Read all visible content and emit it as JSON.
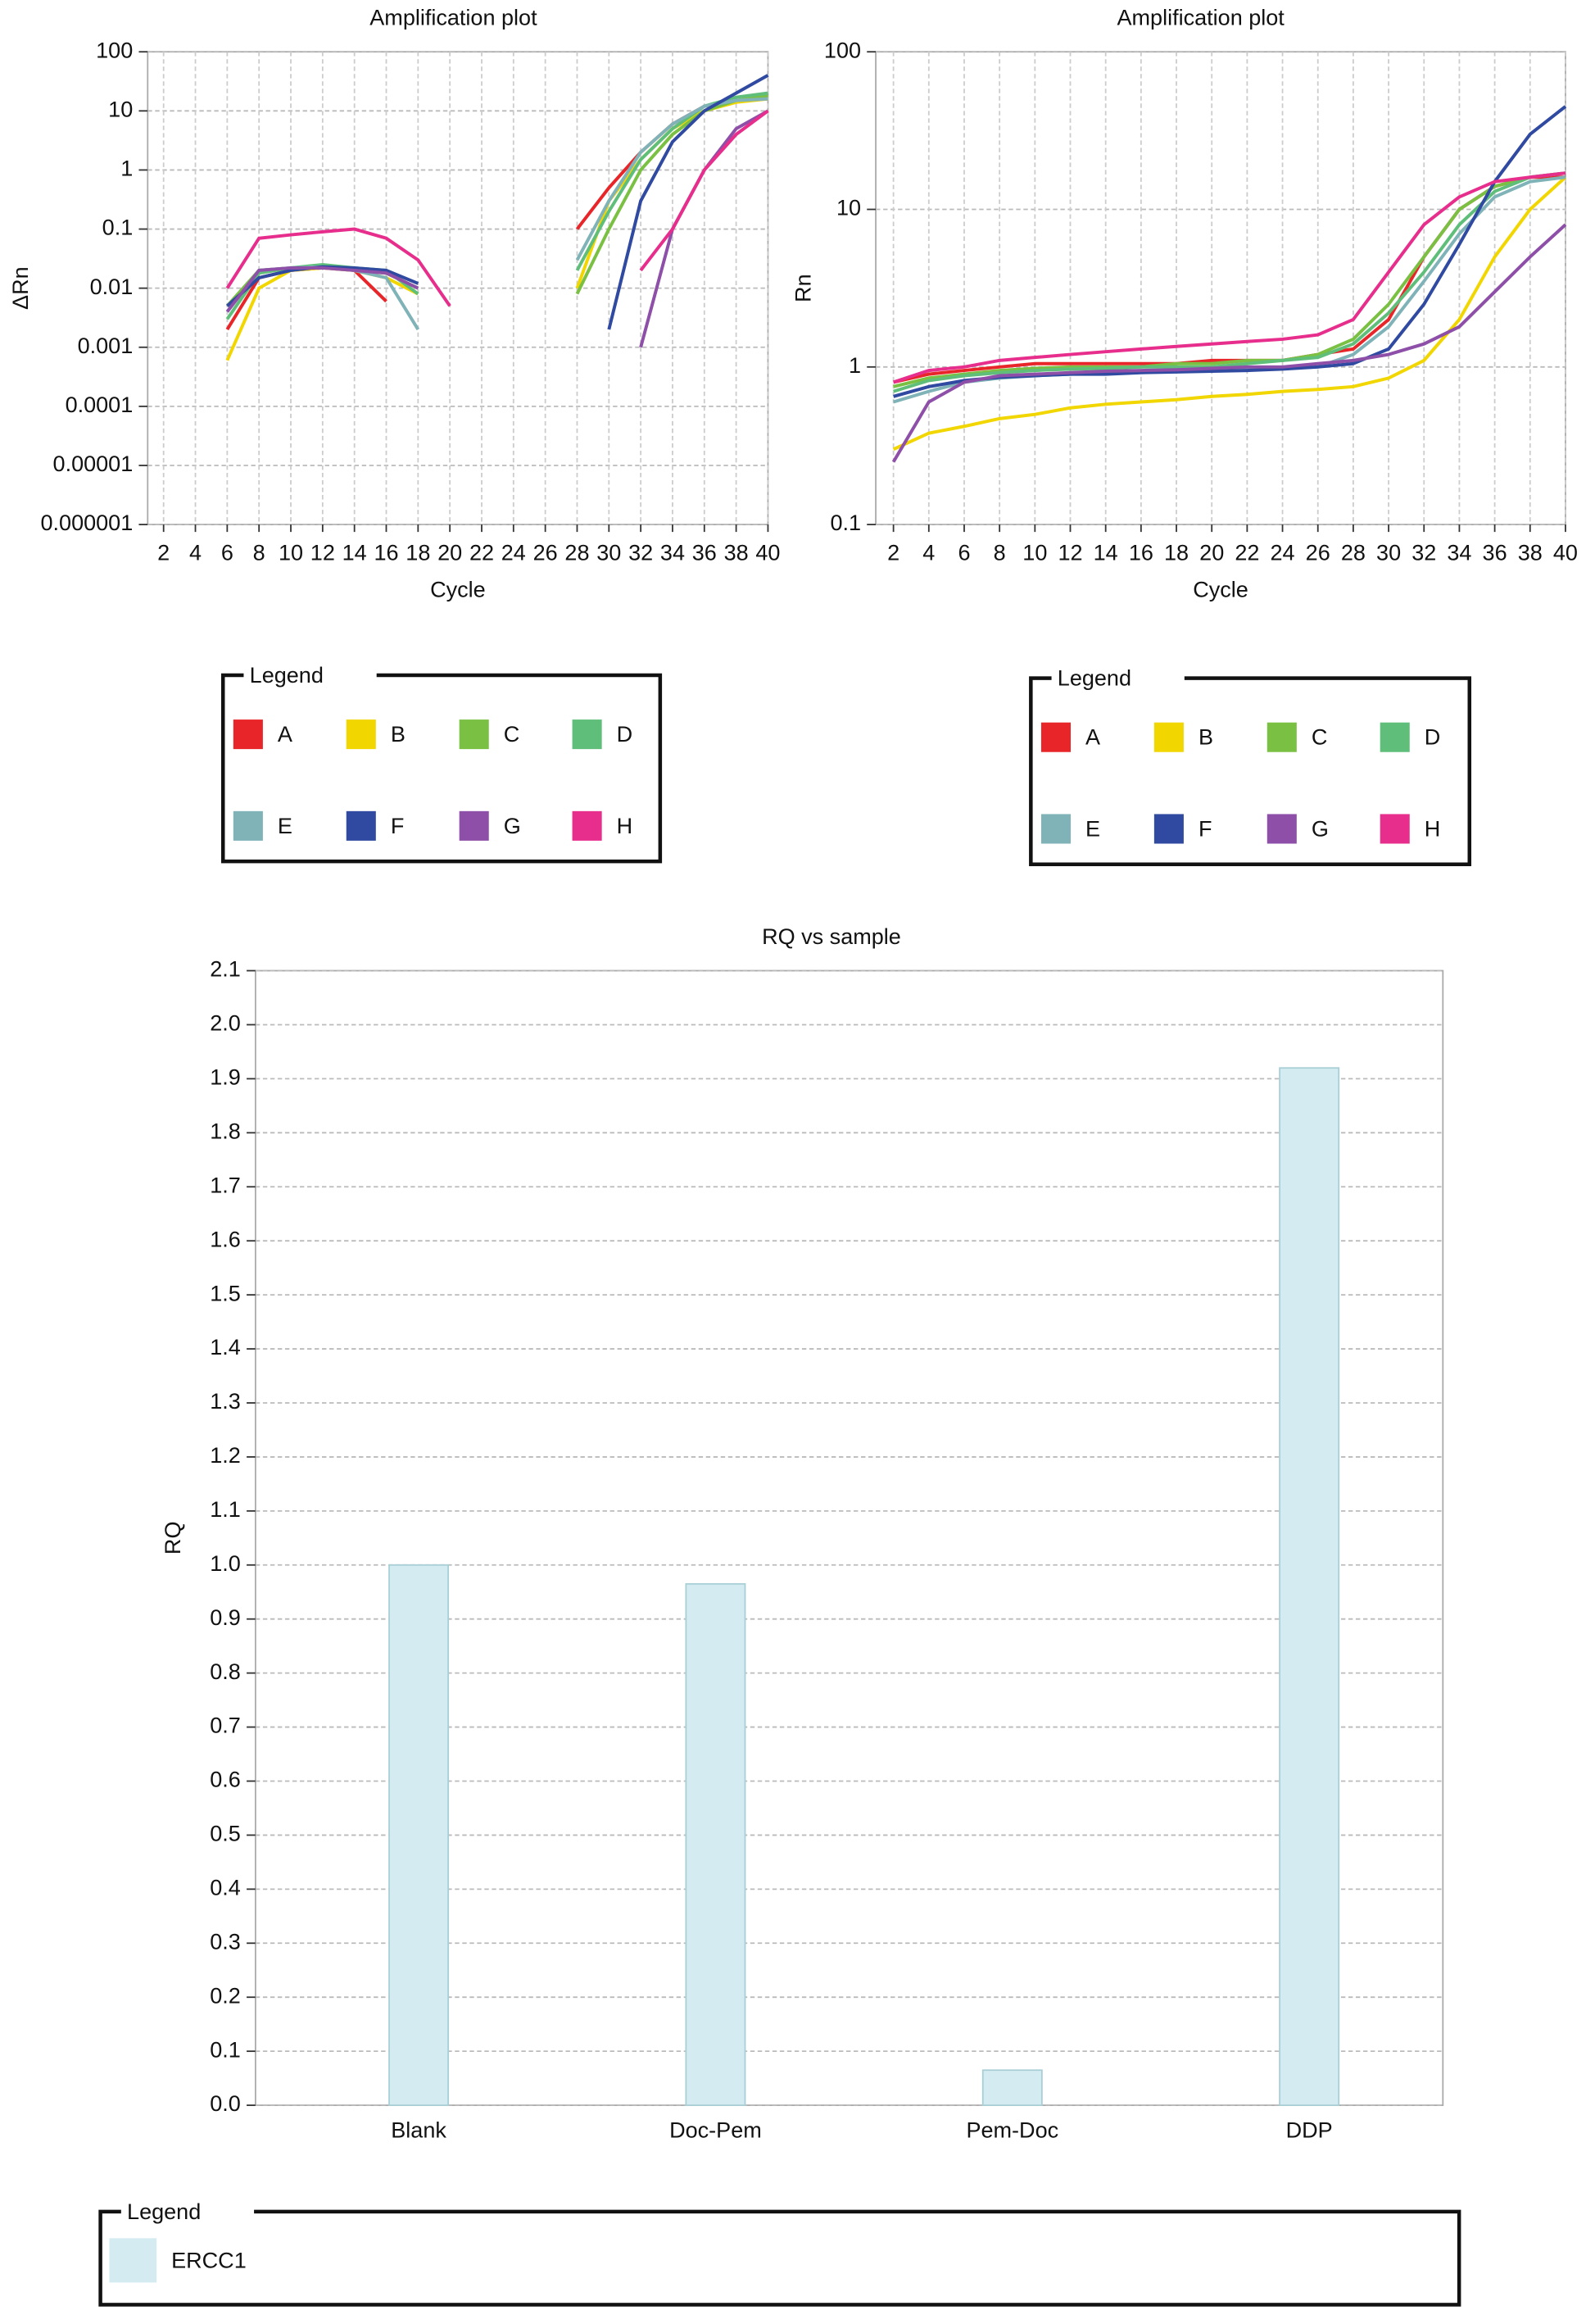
{
  "chart_data": [
    {
      "type": "line",
      "title": "Amplification plot",
      "x_label": "Cycle",
      "y_label": "ΔRn",
      "log_y": true,
      "grid": true,
      "x": [
        6,
        8,
        10,
        12,
        14,
        16,
        18,
        20,
        22,
        24,
        26,
        28,
        30,
        32,
        34,
        36,
        38,
        40
      ],
      "xlim": [
        1,
        40
      ],
      "xticks": [
        2,
        4,
        6,
        8,
        10,
        12,
        14,
        16,
        18,
        20,
        22,
        24,
        26,
        28,
        30,
        32,
        34,
        36,
        38,
        40
      ],
      "ylim": [
        1e-06,
        100
      ],
      "yticks": [
        100,
        10,
        1,
        0.1,
        0.01,
        0.001,
        0.0001,
        1e-05,
        1e-06
      ],
      "legend_title": "Legend",
      "series": [
        {
          "name": "A",
          "color": "#e8262a",
          "values": [
            0.002,
            0.015,
            0.02,
            0.022,
            0.02,
            0.006,
            null,
            null,
            null,
            null,
            null,
            0.1,
            0.5,
            2,
            6,
            12,
            15,
            16
          ]
        },
        {
          "name": "B",
          "color": "#f2d600",
          "values": [
            0.0006,
            0.01,
            0.02,
            0.022,
            0.02,
            0.015,
            0.008,
            null,
            null,
            null,
            null,
            0.01,
            0.3,
            1.5,
            5,
            10,
            14,
            16
          ]
        },
        {
          "name": "C",
          "color": "#7ac043",
          "values": [
            0.005,
            0.02,
            0.022,
            0.024,
            0.02,
            0.018,
            0.01,
            null,
            null,
            null,
            null,
            0.008,
            0.1,
            1,
            4,
            10,
            15,
            18
          ]
        },
        {
          "name": "D",
          "color": "#5fbf7a",
          "values": [
            0.003,
            0.018,
            0.022,
            0.025,
            0.022,
            0.02,
            0.008,
            null,
            null,
            null,
            null,
            0.02,
            0.2,
            1.5,
            5,
            12,
            17,
            20
          ]
        },
        {
          "name": "E",
          "color": "#7fb3b8",
          "values": [
            0.004,
            0.02,
            0.022,
            0.023,
            0.02,
            0.015,
            0.002,
            null,
            null,
            null,
            null,
            0.03,
            0.3,
            2,
            6,
            12,
            15,
            16
          ]
        },
        {
          "name": "F",
          "color": "#2f4aa0",
          "values": [
            0.005,
            0.015,
            0.02,
            0.023,
            0.022,
            0.02,
            0.012,
            null,
            null,
            null,
            null,
            null,
            0.002,
            0.3,
            3,
            10,
            20,
            40
          ]
        },
        {
          "name": "G",
          "color": "#8e4fa8",
          "values": [
            0.004,
            0.02,
            0.022,
            0.022,
            0.02,
            0.018,
            0.01,
            null,
            null,
            null,
            null,
            null,
            null,
            0.001,
            0.1,
            1,
            5,
            10
          ]
        },
        {
          "name": "H",
          "color": "#e72e8c",
          "values": [
            0.01,
            0.07,
            0.08,
            0.09,
            0.1,
            0.07,
            0.03,
            0.005,
            null,
            null,
            null,
            null,
            null,
            0.02,
            0.1,
            1,
            4,
            10
          ]
        }
      ]
    },
    {
      "type": "line",
      "title": "Amplification plot",
      "x_label": "Cycle",
      "y_label": "Rn",
      "log_y": true,
      "grid": true,
      "x": [
        2,
        4,
        6,
        8,
        10,
        12,
        14,
        16,
        18,
        20,
        22,
        24,
        26,
        28,
        30,
        32,
        34,
        36,
        38,
        40
      ],
      "xlim": [
        1,
        40
      ],
      "xticks": [
        2,
        4,
        6,
        8,
        10,
        12,
        14,
        16,
        18,
        20,
        22,
        24,
        26,
        28,
        30,
        32,
        34,
        36,
        38,
        40
      ],
      "ylim": [
        0.1,
        100
      ],
      "yticks": [
        100,
        10,
        1,
        0.1
      ],
      "legend_title": "Legend",
      "series": [
        {
          "name": "A",
          "color": "#e8262a",
          "values": [
            0.8,
            0.9,
            0.95,
            1.0,
            1.05,
            1.05,
            1.05,
            1.05,
            1.05,
            1.1,
            1.1,
            1.1,
            1.2,
            1.3,
            2,
            5,
            10,
            14,
            16,
            16
          ]
        },
        {
          "name": "B",
          "color": "#f2d600",
          "values": [
            0.3,
            0.38,
            0.42,
            0.47,
            0.5,
            0.55,
            0.58,
            0.6,
            0.62,
            0.65,
            0.67,
            0.7,
            0.72,
            0.75,
            0.85,
            1.1,
            2,
            5,
            10,
            16
          ]
        },
        {
          "name": "C",
          "color": "#7ac043",
          "values": [
            0.75,
            0.85,
            0.9,
            0.95,
            0.98,
            1.0,
            1.0,
            1.0,
            1.05,
            1.05,
            1.1,
            1.1,
            1.2,
            1.5,
            2.5,
            5,
            10,
            14,
            16,
            17
          ]
        },
        {
          "name": "D",
          "color": "#5fbf7a",
          "values": [
            0.7,
            0.82,
            0.88,
            0.92,
            0.95,
            0.97,
            0.98,
            1.0,
            1.0,
            1.0,
            1.05,
            1.1,
            1.15,
            1.4,
            2.2,
            4,
            8,
            13,
            16,
            17
          ]
        },
        {
          "name": "E",
          "color": "#7fb3b8",
          "values": [
            0.6,
            0.7,
            0.8,
            0.85,
            0.88,
            0.9,
            0.92,
            0.93,
            0.94,
            0.95,
            0.96,
            0.98,
            1.0,
            1.2,
            1.8,
            3.5,
            7,
            12,
            15,
            16
          ]
        },
        {
          "name": "F",
          "color": "#2f4aa0",
          "values": [
            0.65,
            0.75,
            0.82,
            0.86,
            0.88,
            0.9,
            0.9,
            0.92,
            0.93,
            0.94,
            0.95,
            0.97,
            1.0,
            1.05,
            1.3,
            2.5,
            6,
            15,
            30,
            45
          ]
        },
        {
          "name": "G",
          "color": "#8e4fa8",
          "values": [
            0.25,
            0.6,
            0.8,
            0.88,
            0.9,
            0.92,
            0.94,
            0.95,
            0.96,
            0.98,
            1.0,
            1.0,
            1.05,
            1.1,
            1.2,
            1.4,
            1.8,
            3,
            5,
            8
          ]
        },
        {
          "name": "H",
          "color": "#e72e8c",
          "values": [
            0.8,
            0.95,
            1.0,
            1.1,
            1.15,
            1.2,
            1.25,
            1.3,
            1.35,
            1.4,
            1.45,
            1.5,
            1.6,
            2,
            4,
            8,
            12,
            15,
            16,
            17
          ]
        }
      ]
    },
    {
      "type": "bar",
      "title": "RQ vs sample",
      "y_label": "RQ",
      "grid": true,
      "categories": [
        "Blank",
        "Doc-Pem",
        "Pem-Doc",
        "DDP"
      ],
      "ylim": [
        0,
        2.1
      ],
      "yticks": [
        {
          "value": 0,
          "label": "0.0"
        },
        0.1,
        0.2,
        0.3,
        0.4,
        0.5,
        0.6,
        0.7,
        0.8,
        0.9,
        {
          "value": 1,
          "label": "1.0"
        },
        1.1,
        1.2,
        1.3,
        1.4,
        1.5,
        1.6,
        1.7,
        1.8,
        1.9,
        {
          "value": 2,
          "label": "2.0"
        },
        2.1
      ],
      "legend_title": "Legend",
      "series": [
        {
          "name": "ERCC1",
          "color": "#d4ecf1",
          "values": [
            1.0,
            0.965,
            0.065,
            1.92
          ]
        }
      ]
    }
  ]
}
